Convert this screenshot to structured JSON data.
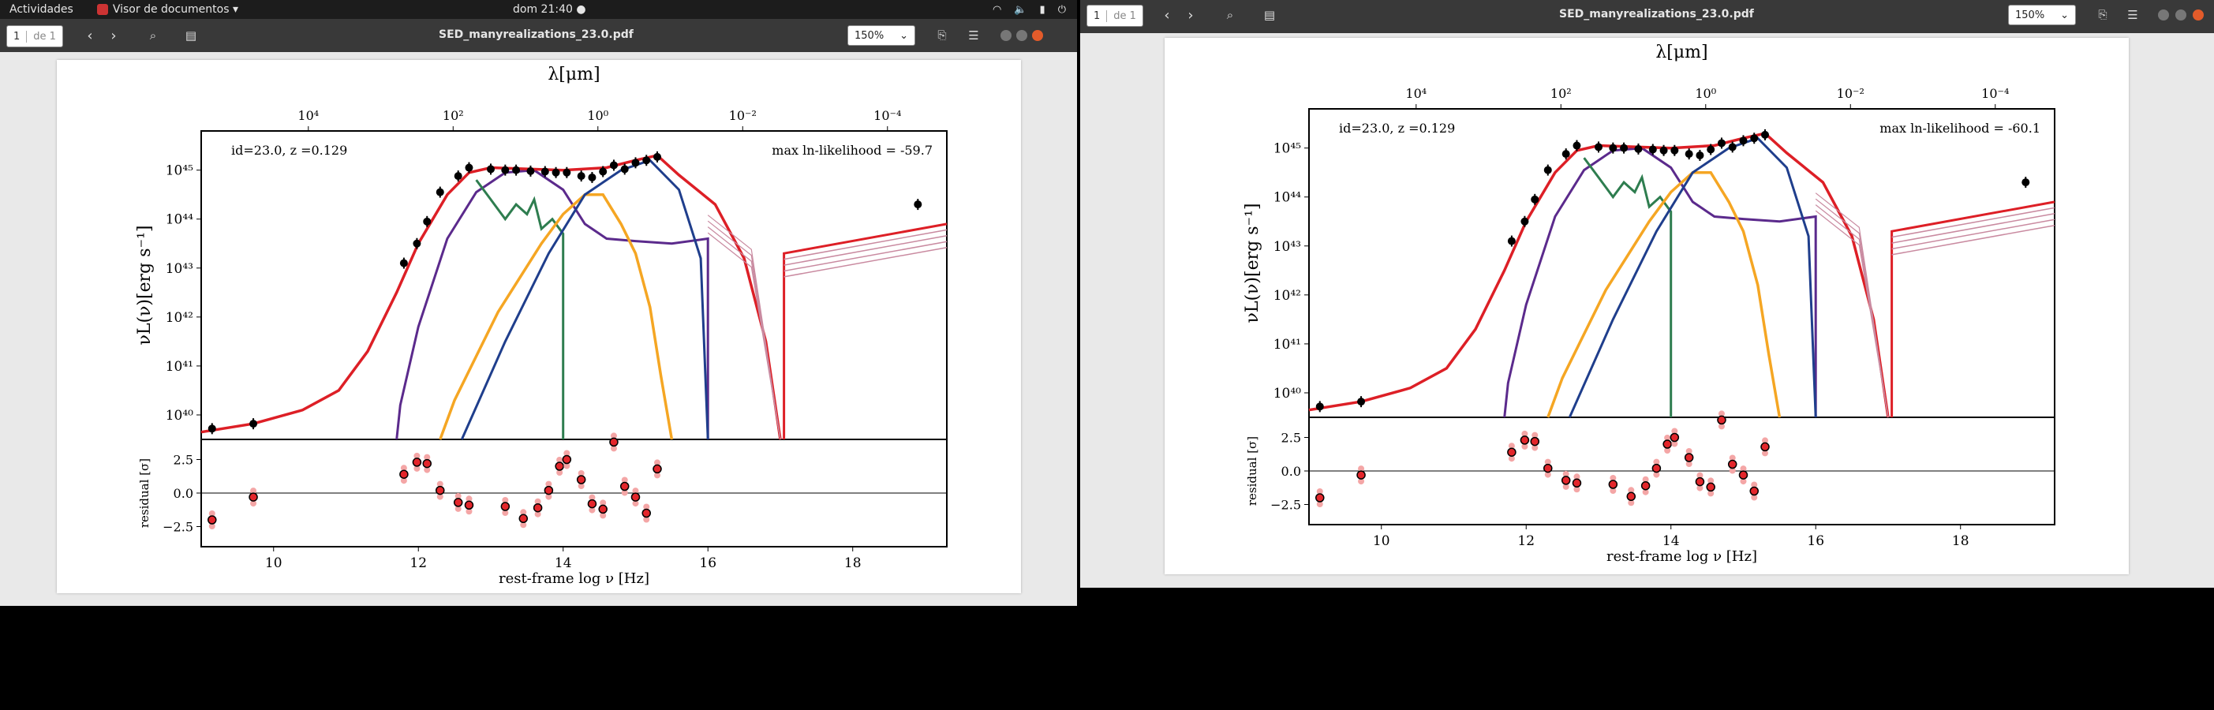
{
  "topbar": {
    "activities": "Actividades",
    "app_menu": "Visor de documentos ▾",
    "clock": "dom 21:40 ●"
  },
  "window_left": {
    "page_current": "1",
    "page_of": "de 1",
    "title": "SED_manyrealizations_23.0.pdf",
    "zoom": "150%",
    "plot": {
      "id_label": "id=23.0, z =0.129",
      "likelihood_label": "max ln-likelihood = -59.7"
    }
  },
  "window_right": {
    "page_current": "1",
    "page_of": "de 1",
    "title": "SED_manyrealizations_23.0.pdf",
    "zoom": "150%",
    "plot": {
      "id_label": "id=23.0, z =0.129",
      "likelihood_label": "max ln-likelihood = -60.1"
    }
  },
  "plot_common": {
    "top_axis_label": "λ[μm]",
    "top_ticks": [
      "10⁴",
      "10²",
      "10⁰",
      "10⁻²",
      "10⁻⁴"
    ],
    "y_label": "νL(ν)[erg s⁻¹]",
    "y_ticks": [
      "10⁴⁰",
      "10⁴¹",
      "10⁴²",
      "10⁴³",
      "10⁴⁴",
      "10⁴⁵"
    ],
    "res_label": "residual [σ]",
    "res_ticks": [
      "2.5",
      "0.0",
      "−2.5"
    ],
    "x_label": "rest-frame log  ν [Hz]",
    "x_ticks": [
      "10",
      "12",
      "14",
      "16",
      "18"
    ]
  },
  "colors": {
    "total": "#dd1f26",
    "agn_torus": "#5b2a8c",
    "starburst": "#2e7d4f",
    "stellar": "#f5a623",
    "bbb": "#1f3e8c",
    "data": "#000000",
    "residual": "#e3262b"
  },
  "chart_data": [
    {
      "type": "scatter",
      "x_axis": "rest-frame log ν [Hz]",
      "xlim": [
        9,
        19.3
      ],
      "y_log_range": [
        39.5,
        45.8
      ],
      "sed_points_lognu_logL": [
        [
          9.15,
          39.72
        ],
        [
          9.72,
          39.82
        ],
        [
          11.8,
          43.1
        ],
        [
          11.98,
          43.5
        ],
        [
          12.12,
          43.95
        ],
        [
          12.3,
          44.55
        ],
        [
          12.55,
          44.88
        ],
        [
          12.7,
          45.05
        ],
        [
          13.0,
          45.02
        ],
        [
          13.2,
          45.0
        ],
        [
          13.35,
          45.0
        ],
        [
          13.55,
          44.98
        ],
        [
          13.75,
          44.97
        ],
        [
          13.9,
          44.95
        ],
        [
          14.05,
          44.95
        ],
        [
          14.25,
          44.88
        ],
        [
          14.4,
          44.85
        ],
        [
          14.55,
          44.97
        ],
        [
          14.7,
          45.1
        ],
        [
          14.85,
          45.02
        ],
        [
          15.0,
          45.15
        ],
        [
          15.15,
          45.2
        ],
        [
          15.3,
          45.27
        ],
        [
          18.9,
          44.3
        ]
      ],
      "residuals_lognu_sigma": [
        [
          9.15,
          -2.0
        ],
        [
          9.72,
          -0.3
        ],
        [
          11.8,
          1.4
        ],
        [
          11.98,
          2.3
        ],
        [
          12.12,
          2.2
        ],
        [
          12.3,
          0.2
        ],
        [
          12.55,
          -0.7
        ],
        [
          12.7,
          -0.9
        ],
        [
          13.2,
          -1.0
        ],
        [
          13.45,
          -1.9
        ],
        [
          13.65,
          -1.1
        ],
        [
          13.8,
          0.2
        ],
        [
          13.95,
          2.0
        ],
        [
          14.05,
          2.5
        ],
        [
          14.25,
          1.0
        ],
        [
          14.4,
          -0.8
        ],
        [
          14.55,
          -1.2
        ],
        [
          14.7,
          3.8
        ],
        [
          14.85,
          0.5
        ],
        [
          15.0,
          -0.3
        ],
        [
          15.15,
          -1.5
        ],
        [
          15.3,
          1.8
        ]
      ]
    }
  ]
}
